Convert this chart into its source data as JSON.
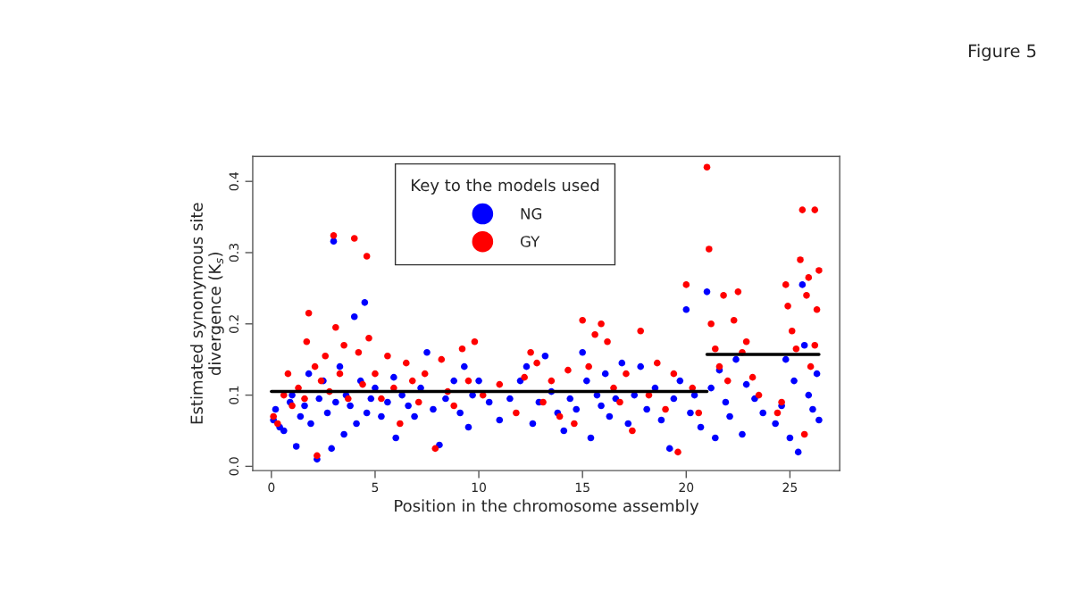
{
  "chart_data": {
    "type": "scatter",
    "xlabel": "Position in the chromosome assembly",
    "ylabel": "Estimated synonymous site\ndivergence (K$_{s}$)",
    "legend_title": "Key to the models used",
    "legend": "top",
    "marker": "circle",
    "grid": false,
    "xlim": [
      -0.9,
      27.4
    ],
    "ylim": [
      -0.006,
      0.435
    ],
    "xticks": [
      0,
      5,
      10,
      15,
      20,
      25
    ],
    "yticks": [
      {
        "value": 0,
        "label": "0.0"
      },
      {
        "value": 0.1,
        "label": "0.1"
      },
      {
        "value": 0.2,
        "label": "0.2"
      },
      {
        "value": 0.3,
        "label": "0.3"
      },
      {
        "value": 0.4,
        "label": "0.4"
      }
    ],
    "annotations": [
      "Figure 5"
    ],
    "series": [
      {
        "name": "NG",
        "color": "#0000ff",
        "x": [
          0.1,
          0.2,
          0.4,
          0.6,
          0.9,
          1.0,
          1.2,
          1.4,
          1.6,
          1.8,
          1.9,
          2.2,
          2.3,
          2.5,
          2.7,
          2.9,
          3.0,
          3.1,
          3.3,
          3.5,
          3.6,
          3.8,
          4.0,
          4.1,
          4.3,
          4.5,
          4.6,
          4.8,
          5.0,
          5.3,
          5.6,
          5.9,
          6.0,
          6.3,
          6.6,
          6.9,
          7.2,
          7.5,
          7.8,
          8.1,
          8.4,
          8.8,
          9.1,
          9.3,
          9.5,
          9.7,
          10.0,
          10.5,
          11.0,
          11.5,
          12.0,
          12.3,
          12.6,
          12.9,
          13.2,
          13.5,
          13.8,
          14.1,
          14.4,
          14.7,
          15.0,
          15.2,
          15.4,
          15.7,
          15.9,
          16.1,
          16.3,
          16.6,
          16.9,
          17.2,
          17.5,
          17.8,
          18.1,
          18.5,
          18.8,
          19.2,
          19.4,
          19.7,
          20.0,
          20.2,
          20.4,
          20.7,
          21.0,
          21.2,
          21.4,
          21.6,
          21.9,
          22.1,
          22.4,
          22.7,
          22.9,
          23.3,
          23.7,
          24.3,
          24.6,
          24.8,
          25.0,
          25.2,
          25.4,
          25.6,
          25.7,
          25.9,
          26.1,
          26.3,
          26.4
        ],
        "values": [
          0.065,
          0.08,
          0.055,
          0.05,
          0.09,
          0.1,
          0.028,
          0.07,
          0.085,
          0.13,
          0.06,
          0.01,
          0.095,
          0.12,
          0.075,
          0.025,
          0.316,
          0.09,
          0.14,
          0.045,
          0.1,
          0.085,
          0.21,
          0.06,
          0.12,
          0.23,
          0.075,
          0.095,
          0.11,
          0.07,
          0.09,
          0.125,
          0.04,
          0.1,
          0.085,
          0.07,
          0.11,
          0.16,
          0.08,
          0.03,
          0.095,
          0.12,
          0.075,
          0.14,
          0.055,
          0.1,
          0.12,
          0.09,
          0.065,
          0.095,
          0.12,
          0.14,
          0.06,
          0.09,
          0.155,
          0.105,
          0.075,
          0.05,
          0.095,
          0.08,
          0.16,
          0.12,
          0.04,
          0.1,
          0.085,
          0.13,
          0.07,
          0.095,
          0.145,
          0.06,
          0.1,
          0.14,
          0.08,
          0.11,
          0.065,
          0.025,
          0.095,
          0.12,
          0.22,
          0.075,
          0.1,
          0.055,
          0.245,
          0.11,
          0.04,
          0.135,
          0.09,
          0.07,
          0.15,
          0.045,
          0.115,
          0.095,
          0.075,
          0.06,
          0.085,
          0.15,
          0.04,
          0.12,
          0.02,
          0.255,
          0.17,
          0.1,
          0.08,
          0.13,
          0.065
        ]
      },
      {
        "name": "GY",
        "color": "#ff0000",
        "x": [
          0.1,
          0.3,
          0.6,
          0.8,
          1.0,
          1.3,
          1.6,
          1.7,
          1.8,
          2.1,
          2.2,
          2.4,
          2.6,
          2.8,
          3.0,
          3.1,
          3.3,
          3.5,
          3.7,
          4.0,
          4.2,
          4.4,
          4.6,
          4.7,
          5.0,
          5.3,
          5.6,
          5.9,
          6.2,
          6.5,
          6.8,
          7.1,
          7.4,
          7.9,
          8.2,
          8.5,
          8.8,
          9.2,
          9.5,
          9.8,
          10.2,
          11.0,
          11.8,
          12.2,
          12.5,
          12.8,
          13.1,
          13.5,
          13.9,
          14.3,
          14.6,
          15.0,
          15.3,
          15.6,
          15.9,
          16.2,
          16.5,
          16.8,
          17.1,
          17.4,
          17.8,
          18.2,
          18.6,
          19.0,
          19.4,
          19.6,
          20.0,
          20.3,
          20.6,
          21.0,
          21.1,
          21.2,
          21.4,
          21.6,
          21.8,
          22.0,
          22.3,
          22.5,
          22.7,
          22.9,
          23.2,
          23.5,
          24.4,
          24.6,
          24.8,
          24.9,
          25.1,
          25.3,
          25.5,
          25.6,
          25.8,
          25.9,
          26.0,
          26.2,
          26.3,
          26.4,
          26.2,
          25.7
        ],
        "values": [
          0.07,
          0.06,
          0.1,
          0.13,
          0.085,
          0.11,
          0.095,
          0.175,
          0.215,
          0.14,
          0.015,
          0.12,
          0.155,
          0.105,
          0.324,
          0.195,
          0.13,
          0.17,
          0.095,
          0.32,
          0.16,
          0.115,
          0.295,
          0.18,
          0.13,
          0.095,
          0.155,
          0.11,
          0.06,
          0.145,
          0.12,
          0.09,
          0.13,
          0.025,
          0.15,
          0.105,
          0.085,
          0.165,
          0.12,
          0.175,
          0.1,
          0.115,
          0.075,
          0.125,
          0.16,
          0.145,
          0.09,
          0.12,
          0.07,
          0.135,
          0.06,
          0.205,
          0.14,
          0.185,
          0.2,
          0.175,
          0.11,
          0.09,
          0.13,
          0.05,
          0.19,
          0.1,
          0.145,
          0.08,
          0.13,
          0.02,
          0.255,
          0.11,
          0.075,
          0.42,
          0.305,
          0.2,
          0.165,
          0.14,
          0.24,
          0.12,
          0.205,
          0.245,
          0.16,
          0.175,
          0.125,
          0.1,
          0.075,
          0.09,
          0.255,
          0.225,
          0.19,
          0.165,
          0.29,
          0.36,
          0.24,
          0.265,
          0.14,
          0.36,
          0.22,
          0.275,
          0.17,
          0.045
        ]
      },
      {
        "type": "line",
        "marker": "none",
        "color": "#000000",
        "x": [
          0,
          21
        ],
        "values": [
          0.105,
          0.105
        ]
      },
      {
        "type": "line",
        "marker": "none",
        "color": "#000000",
        "x": [
          21,
          26.4
        ],
        "values": [
          0.157,
          0.157
        ]
      }
    ]
  }
}
